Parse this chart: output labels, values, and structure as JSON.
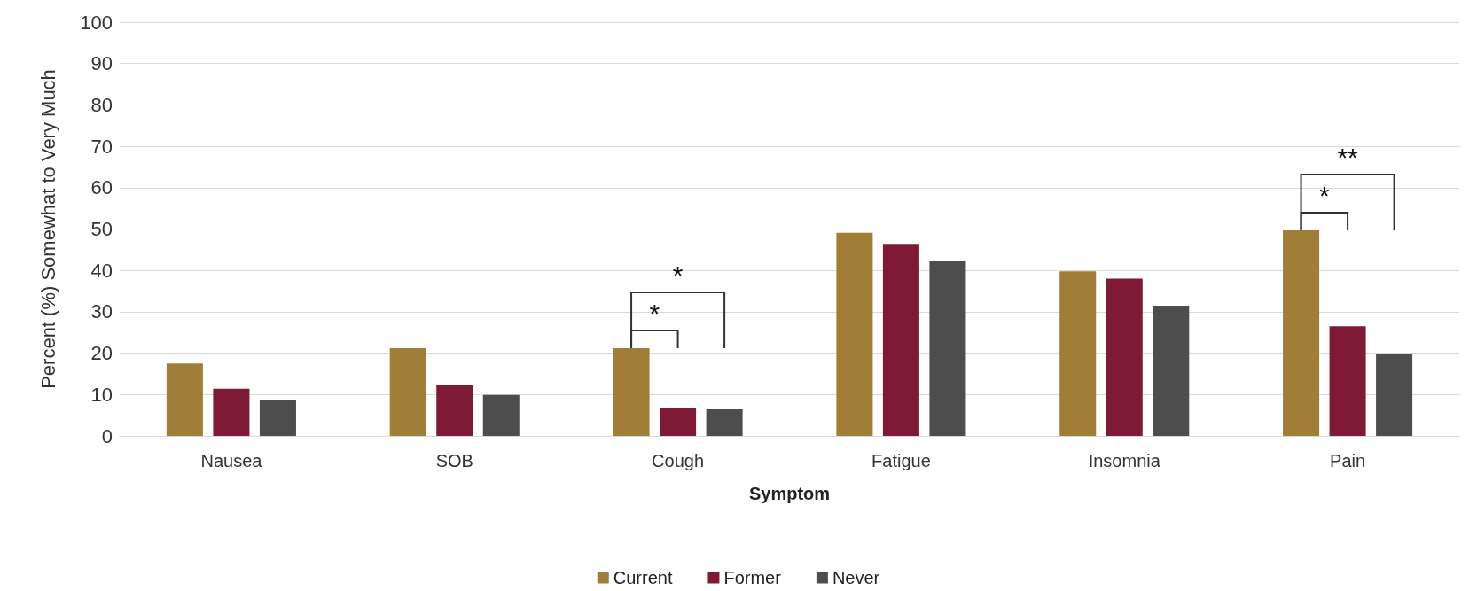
{
  "chart_data": {
    "type": "bar",
    "xlabel": "Symptom",
    "ylabel": "Percent (%) Somewhat to Very Much",
    "categories": [
      "Nausea",
      "SOB",
      "Cough",
      "Fatigue",
      "Insomnia",
      "Pain"
    ],
    "series": [
      {
        "name": "Current",
        "color": "#a07e38",
        "values": [
          17.5,
          21.2,
          21.2,
          49.1,
          39.8,
          49.7
        ]
      },
      {
        "name": "Former",
        "color": "#7e1a35",
        "values": [
          11.4,
          12.2,
          6.7,
          46.4,
          38.0,
          26.5
        ]
      },
      {
        "name": "Never",
        "color": "#4d4d4d",
        "values": [
          8.6,
          9.9,
          6.4,
          42.4,
          31.5,
          19.7
        ]
      }
    ],
    "ylim": [
      0,
      100
    ],
    "yticks": [
      0,
      10,
      20,
      30,
      40,
      50,
      60,
      70,
      80,
      90,
      100
    ],
    "grid": "y",
    "legend": "bottom",
    "annotations": [
      "*",
      "*",
      "*",
      "**"
    ]
  }
}
